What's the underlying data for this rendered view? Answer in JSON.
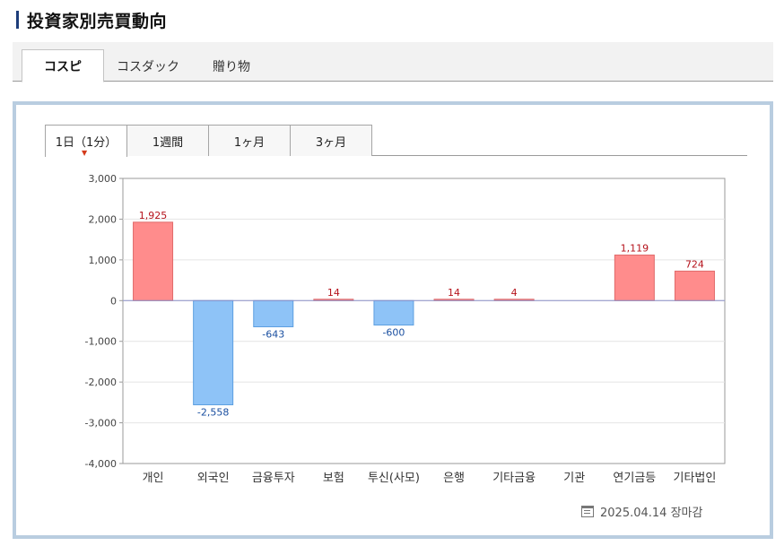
{
  "page": {
    "title": "投資家別売買動向"
  },
  "market_tabs": [
    {
      "label": "コスピ",
      "active": true
    },
    {
      "label": "コスダック",
      "active": false
    },
    {
      "label": "贈り物",
      "active": false
    }
  ],
  "period_tabs": [
    {
      "label": "1日（1分）",
      "active": true
    },
    {
      "label": "1週間",
      "active": false
    },
    {
      "label": "1ヶ月",
      "active": false
    },
    {
      "label": "3ヶ月",
      "active": false
    }
  ],
  "footer": {
    "date_text": "2025.04.14 장마감",
    "icon": "calendar-clock-icon"
  },
  "colors": {
    "positive_fill": "#ff8c8c",
    "positive_stroke": "#e06a6a",
    "positive_label": "#b5121b",
    "negative_fill": "#8ec3f7",
    "negative_stroke": "#5d9fe0",
    "negative_label": "#1a4fa0",
    "zero_line": "#8a8fc8",
    "grid": "#e4e4e4",
    "panel_border": "#b9cde0"
  },
  "chart_data": {
    "type": "bar",
    "categories": [
      "개인",
      "외국인",
      "금융투자",
      "보험",
      "투신(사모)",
      "은행",
      "기타금융",
      "기관",
      "연기금등",
      "기타법인"
    ],
    "values": [
      1925,
      -2558,
      -643,
      14,
      -600,
      14,
      4,
      null,
      1119,
      724
    ],
    "data_labels": [
      "1,925",
      "-2,558",
      "-643",
      "14",
      "-600",
      "14",
      "4",
      "",
      "1,119",
      "724"
    ],
    "ylim": [
      -4000,
      3000
    ],
    "yticks": [
      3000,
      2000,
      1000,
      0,
      -1000,
      -2000,
      -3000,
      -4000
    ],
    "ytick_labels": [
      "3,000",
      "2,000",
      "1,000",
      "0",
      "-1,000",
      "-2,000",
      "-3,000",
      "-4,000"
    ],
    "title": "",
    "xlabel": "",
    "ylabel": "",
    "grid": true,
    "legend": "none"
  }
}
